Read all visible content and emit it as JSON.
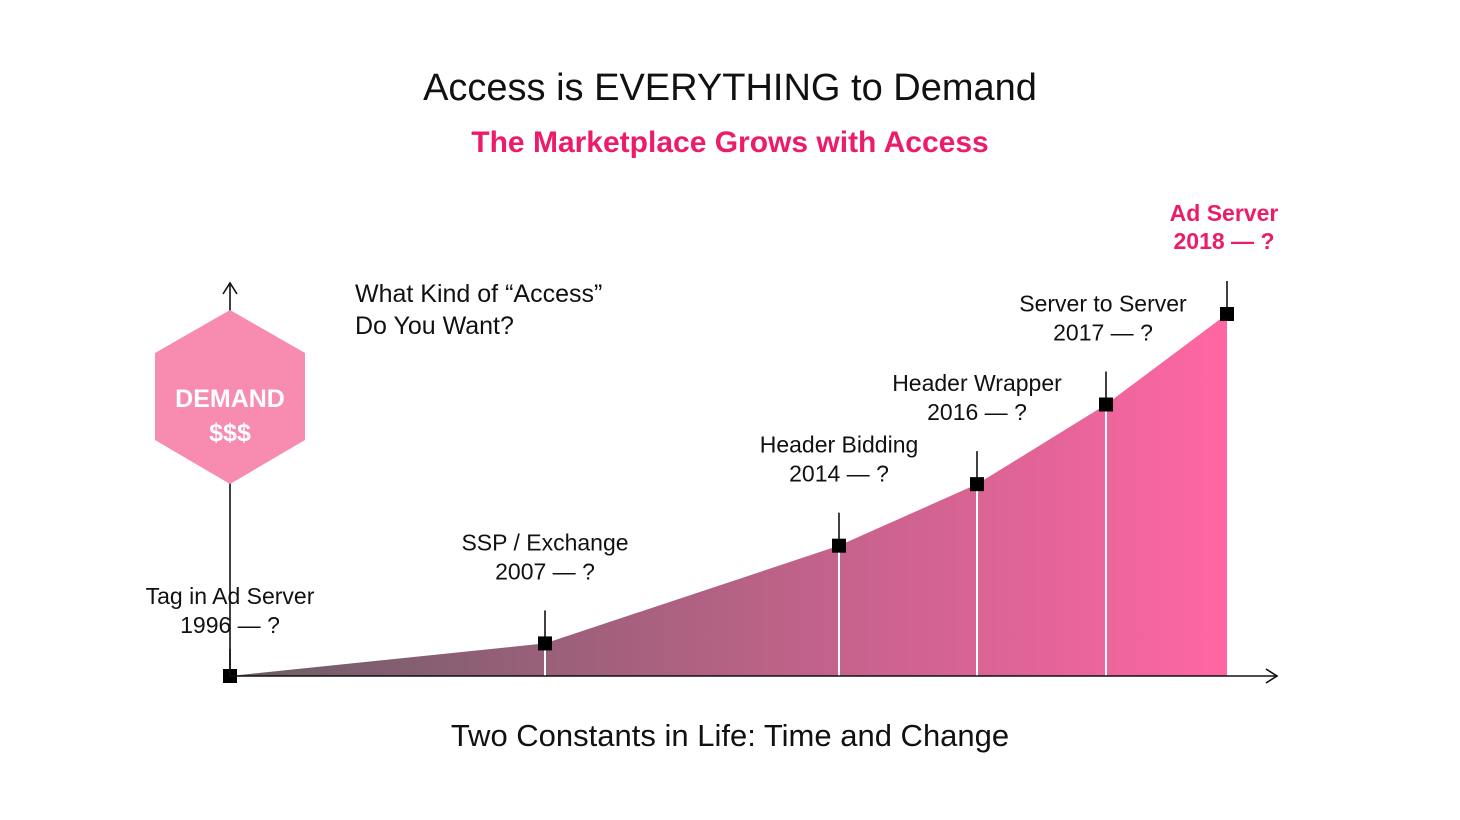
{
  "title": "Access is EVERYTHING to Demand",
  "subtitle": "The Marketplace Grows with Access",
  "question": {
    "line1": "What Kind of “Access”",
    "line2": "Do You Want?"
  },
  "demand": {
    "line1": "DEMAND",
    "line2": "$$$"
  },
  "footer": "Two Constants in Life: Time and Change",
  "colors": {
    "accent": "#ec1c6a",
    "hexagon": "#f78bb0",
    "area_start": "#6a5d66",
    "area_end": "#ff66a3",
    "marker": "#000000"
  },
  "chart_data": {
    "type": "area",
    "x_axis": "time",
    "milestones": [
      {
        "name": "Tag in Ad Server",
        "range": "1996 — ?",
        "x": 1996,
        "y": 0,
        "highlight": false
      },
      {
        "name": "SSP / Exchange",
        "range": "2007 — ?",
        "x": 2007,
        "y": 0.09,
        "highlight": false
      },
      {
        "name": "Header Bidding",
        "range": "2014 — ?",
        "x": 2014,
        "y": 0.36,
        "highlight": false
      },
      {
        "name": "Header Wrapper",
        "range": "2016 — ?",
        "x": 2016,
        "y": 0.53,
        "highlight": false
      },
      {
        "name": "Server to Server",
        "range": "2017 — ?",
        "x": 2017,
        "y": 0.75,
        "highlight": false
      },
      {
        "name": "Ad Server",
        "range": "2018 — ?",
        "x": 2018,
        "y": 1.0,
        "highlight": true
      }
    ]
  }
}
